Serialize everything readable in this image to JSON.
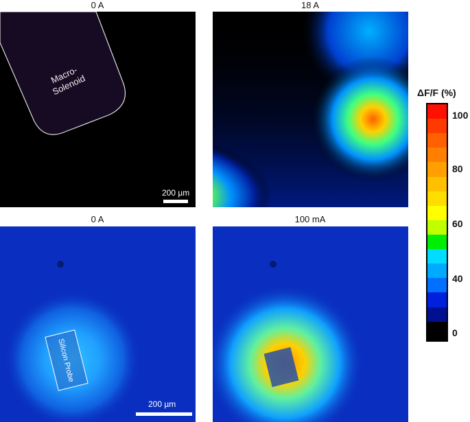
{
  "panels": [
    {
      "title": "0 A",
      "annotation": "Macro-\nSolenoid",
      "annotation_lines": [
        "Macro-",
        "Solenoid"
      ],
      "scale_bar": "200 µm"
    },
    {
      "title": "18 A"
    },
    {
      "title": "0 A",
      "annotation": "Silicon Probe"
    },
    {
      "title": "100 mA",
      "scale_bar": "200 µm"
    }
  ],
  "colorbar": {
    "title": "ΔF/F (%)",
    "ticks": [
      "100",
      "80",
      "60",
      "40",
      "0"
    ],
    "range": [
      0,
      100
    ],
    "colors": [
      "#ff1000",
      "#ff3a00",
      "#ff6000",
      "#ff8000",
      "#ffa000",
      "#ffc000",
      "#ffdd00",
      "#ffff00",
      "#c0ff00",
      "#00ee00",
      "#00ddff",
      "#00aaff",
      "#0070ff",
      "#0020dd",
      "#001090",
      "#000000"
    ]
  }
}
